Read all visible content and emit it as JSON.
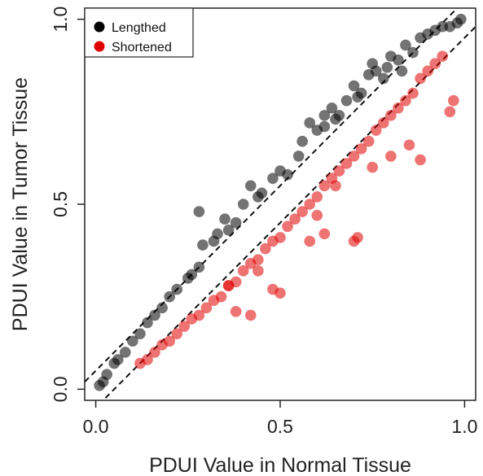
{
  "chart_data": {
    "type": "scatter",
    "xlabel": "PDUI Value in Normal Tissue",
    "ylabel": "PDUI Value in Tumor Tissue",
    "xlim": [
      -0.03,
      1.03
    ],
    "ylim": [
      -0.03,
      1.03
    ],
    "x_ticks": [
      "0.0",
      "0.5",
      "1.0"
    ],
    "y_ticks": [
      "0.0",
      "0.5",
      "1.0"
    ],
    "grid": false,
    "legend_position": "top-left",
    "reference_lines": [
      {
        "style": "dashed",
        "intercept": 0.05,
        "slope": 1
      },
      {
        "style": "dashed",
        "intercept": -0.05,
        "slope": 1
      }
    ],
    "series": [
      {
        "name": "Lengthed",
        "color": "#000000",
        "points": [
          [
            0.01,
            0.01
          ],
          [
            0.02,
            0.02
          ],
          [
            0.03,
            0.04
          ],
          [
            0.05,
            0.07
          ],
          [
            0.06,
            0.08
          ],
          [
            0.08,
            0.1
          ],
          [
            0.1,
            0.13
          ],
          [
            0.12,
            0.15
          ],
          [
            0.14,
            0.18
          ],
          [
            0.16,
            0.2
          ],
          [
            0.18,
            0.22
          ],
          [
            0.2,
            0.25
          ],
          [
            0.22,
            0.27
          ],
          [
            0.25,
            0.3
          ],
          [
            0.28,
            0.33
          ],
          [
            0.28,
            0.48
          ],
          [
            0.29,
            0.39
          ],
          [
            0.32,
            0.4
          ],
          [
            0.33,
            0.42
          ],
          [
            0.35,
            0.46
          ],
          [
            0.38,
            0.45
          ],
          [
            0.42,
            0.55
          ],
          [
            0.45,
            0.53
          ],
          [
            0.48,
            0.57
          ],
          [
            0.5,
            0.59
          ],
          [
            0.52,
            0.58
          ],
          [
            0.55,
            0.63
          ],
          [
            0.56,
            0.67
          ],
          [
            0.58,
            0.72
          ],
          [
            0.6,
            0.7
          ],
          [
            0.62,
            0.71
          ],
          [
            0.64,
            0.76
          ],
          [
            0.66,
            0.74
          ],
          [
            0.68,
            0.78
          ],
          [
            0.7,
            0.82
          ],
          [
            0.72,
            0.8
          ],
          [
            0.74,
            0.85
          ],
          [
            0.75,
            0.88
          ],
          [
            0.76,
            0.86
          ],
          [
            0.78,
            0.84
          ],
          [
            0.8,
            0.9
          ],
          [
            0.82,
            0.89
          ],
          [
            0.84,
            0.93
          ],
          [
            0.86,
            0.91
          ],
          [
            0.88,
            0.95
          ],
          [
            0.9,
            0.96
          ],
          [
            0.92,
            0.97
          ],
          [
            0.94,
            0.98
          ],
          [
            0.96,
            0.98
          ],
          [
            0.98,
            0.99
          ],
          [
            0.99,
            1.0
          ],
          [
            0.83,
            0.86
          ],
          [
            0.79,
            0.87
          ],
          [
            0.71,
            0.79
          ],
          [
            0.65,
            0.73
          ],
          [
            0.62,
            0.74
          ],
          [
            0.4,
            0.5
          ],
          [
            0.44,
            0.52
          ],
          [
            0.36,
            0.43
          ],
          [
            0.26,
            0.31
          ]
        ]
      },
      {
        "name": "Shortened",
        "color": "#e00000",
        "points": [
          [
            0.12,
            0.07
          ],
          [
            0.14,
            0.08
          ],
          [
            0.16,
            0.1
          ],
          [
            0.18,
            0.12
          ],
          [
            0.2,
            0.13
          ],
          [
            0.22,
            0.15
          ],
          [
            0.24,
            0.17
          ],
          [
            0.26,
            0.19
          ],
          [
            0.28,
            0.2
          ],
          [
            0.3,
            0.22
          ],
          [
            0.32,
            0.24
          ],
          [
            0.34,
            0.25
          ],
          [
            0.36,
            0.28
          ],
          [
            0.38,
            0.29
          ],
          [
            0.4,
            0.32
          ],
          [
            0.42,
            0.34
          ],
          [
            0.44,
            0.35
          ],
          [
            0.46,
            0.38
          ],
          [
            0.48,
            0.4
          ],
          [
            0.5,
            0.41
          ],
          [
            0.52,
            0.44
          ],
          [
            0.54,
            0.46
          ],
          [
            0.56,
            0.48
          ],
          [
            0.58,
            0.5
          ],
          [
            0.6,
            0.52
          ],
          [
            0.62,
            0.55
          ],
          [
            0.64,
            0.57
          ],
          [
            0.66,
            0.59
          ],
          [
            0.68,
            0.61
          ],
          [
            0.7,
            0.63
          ],
          [
            0.72,
            0.65
          ],
          [
            0.74,
            0.67
          ],
          [
            0.76,
            0.7
          ],
          [
            0.78,
            0.72
          ],
          [
            0.8,
            0.74
          ],
          [
            0.82,
            0.76
          ],
          [
            0.84,
            0.78
          ],
          [
            0.86,
            0.8
          ],
          [
            0.88,
            0.84
          ],
          [
            0.9,
            0.86
          ],
          [
            0.92,
            0.88
          ],
          [
            0.94,
            0.9
          ],
          [
            0.96,
            0.75
          ],
          [
            0.97,
            0.78
          ],
          [
            0.7,
            0.4
          ],
          [
            0.71,
            0.41
          ],
          [
            0.6,
            0.47
          ],
          [
            0.65,
            0.55
          ],
          [
            0.75,
            0.6
          ],
          [
            0.8,
            0.63
          ],
          [
            0.85,
            0.66
          ],
          [
            0.88,
            0.62
          ],
          [
            0.48,
            0.27
          ],
          [
            0.5,
            0.26
          ],
          [
            0.42,
            0.2
          ],
          [
            0.36,
            0.28
          ],
          [
            0.58,
            0.4
          ],
          [
            0.62,
            0.42
          ],
          [
            0.44,
            0.32
          ],
          [
            0.38,
            0.21
          ]
        ]
      }
    ]
  }
}
